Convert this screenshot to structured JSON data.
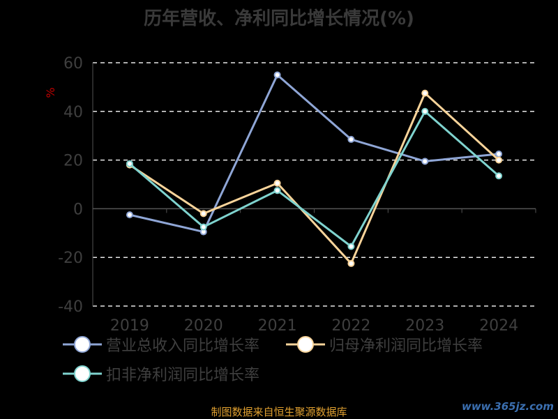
{
  "title": "历年营收、净利同比增长情况(%)",
  "source": "制图数据来自恒生聚源数据库",
  "watermark": "www.365jz.com",
  "chart_data": {
    "type": "line",
    "title": "历年营收、净利同比增长情况(%)",
    "ylabel": "%",
    "xlabel": "",
    "categories": [
      "2019",
      "2020",
      "2021",
      "2022",
      "2023",
      "2024"
    ],
    "ylim": [
      -40,
      60
    ],
    "yticks": [
      60,
      40,
      20,
      0,
      -20,
      -40
    ],
    "grid": true,
    "legend_position": "bottom",
    "series": [
      {
        "name": "营业总收入同比增长率",
        "color": "#8fa6d6",
        "values": [
          -2.5,
          -9.5,
          55,
          28.5,
          19.5,
          22.5
        ]
      },
      {
        "name": "归母净利润同比增长率",
        "color": "#f9d49a",
        "values": [
          18,
          -2,
          10.5,
          -22.5,
          47.5,
          20
        ]
      },
      {
        "name": "扣非净利润同比增长率",
        "color": "#7fd3cf",
        "values": [
          18.5,
          -7.5,
          7.5,
          -15.5,
          40,
          13.5
        ]
      }
    ]
  }
}
